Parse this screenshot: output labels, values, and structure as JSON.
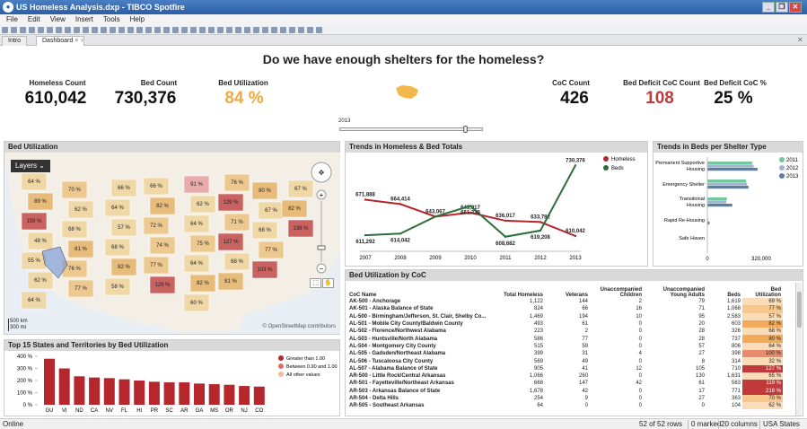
{
  "window": {
    "title": "US Homeless Analysis.dxp - TIBCO Spotfire"
  },
  "menu": [
    "File",
    "Edit",
    "View",
    "Insert",
    "Tools",
    "Help"
  ],
  "tabs": [
    "Intro",
    "Dashboard"
  ],
  "header": {
    "title": "Do we have enough shelters for the homeless?",
    "kpis": [
      {
        "label": "Homeless Count",
        "value": "610,042",
        "color": "#111111"
      },
      {
        "label": "Bed Count",
        "value": "730,376",
        "color": "#111111"
      },
      {
        "label": "Bed Utilization",
        "value": "84 %",
        "color": "#f2a93b"
      },
      {
        "label": "CoC Count",
        "value": "426",
        "color": "#111111"
      },
      {
        "label": "Bed Deficit CoC Count",
        "value": "108",
        "color": "#c0393b"
      },
      {
        "label": "Bed Deficit CoC %",
        "value": "25 %",
        "color": "#111111"
      }
    ],
    "slider_year": "2013",
    "slider_position": 0.87
  },
  "map": {
    "title": "Bed Utilization",
    "layers_label": "Layers",
    "scale_label": "500 km\n300 mi",
    "attribution": "© OpenStreetMap contributors",
    "states": [
      "64 %",
      "89 %",
      "159 %",
      "48 %",
      "55 %",
      "62 %",
      "64 %",
      "70 %",
      "62 %",
      "68 %",
      "81 %",
      "76 %",
      "77 %",
      "66 %",
      "64 %",
      "57 %",
      "68 %",
      "82 %",
      "58 %",
      "66 %",
      "82 %",
      "72 %",
      "74 %",
      "77 %",
      "129 %",
      "91 %",
      "62 %",
      "64 %",
      "75 %",
      "64 %",
      "82 %",
      "60 %",
      "76 %",
      "129 %",
      "71 %",
      "127 %",
      "68 %",
      "81 %",
      "80 %",
      "67 %",
      "68 %",
      "77 %",
      "103 %",
      "67 %",
      "82 %",
      "138 %"
    ]
  },
  "trends": {
    "title": "Trends in Homeless & Bed Totals",
    "legend": [
      "Homeless",
      "Beds"
    ],
    "colors": [
      "#b5262d",
      "#2e6e3e"
    ]
  },
  "shelter": {
    "title": "Trends in Beds per Shelter Type",
    "years": [
      "2011",
      "2012",
      "2013"
    ],
    "colors": [
      "#74c69d",
      "#9fb7cc",
      "#5a7fa0"
    ],
    "axis": [
      "0",
      "320,000"
    ],
    "categories": [
      "Permanent Supportive Housing",
      "Emergency Shelter",
      "Transitional Housing",
      "Rapid Re-Housing",
      "Safe Haven"
    ]
  },
  "bottom_chart": {
    "title": "Top 15 States and Territories by Bed Utilization",
    "legend": [
      "Greater than 1.00",
      "Between 0.90 and 1.00",
      "All other values"
    ],
    "legend_colors": [
      "#b5262d",
      "#e26b6b",
      "#f2b8a0"
    ]
  },
  "coc_table": {
    "title": "Bed Utilization by CoC",
    "columns": [
      "CoC Name",
      "Total Homeless",
      "Veterans",
      "Unaccompanied Children",
      "Unaccompanied Young Adults",
      "Beds",
      "Bed Utilization"
    ],
    "rows": [
      [
        "AK-500 - Anchorage",
        "1,122",
        "144",
        "2",
        "79",
        "1,619",
        "69 %"
      ],
      [
        "AK-501 - Alaska Balance of State",
        "824",
        "66",
        "16",
        "71",
        "1,068",
        "77 %"
      ],
      [
        "AL-500 - Birmingham/Jefferson, St. Clair, Shelby Co...",
        "1,469",
        "194",
        "10",
        "95",
        "2,583",
        "57 %"
      ],
      [
        "AL-501 - Mobile City County/Baldwin County",
        "493",
        "61",
        "0",
        "20",
        "603",
        "82 %"
      ],
      [
        "AL-502 - Florence/Northwest Alabama",
        "223",
        "2",
        "0",
        "28",
        "326",
        "68 %"
      ],
      [
        "AL-503 - Huntsville/North Alabama",
        "586",
        "77",
        "0",
        "28",
        "737",
        "80 %"
      ],
      [
        "AL-504 - Montgomery City County",
        "515",
        "59",
        "0",
        "57",
        "806",
        "64 %"
      ],
      [
        "AL-505 - Gadsden/Northeast Alabama",
        "399",
        "31",
        "4",
        "27",
        "398",
        "100 %"
      ],
      [
        "AL-506 - Tuscaloosa City County",
        "569",
        "49",
        "0",
        "8",
        "314",
        "32 %"
      ],
      [
        "AL-507 - Alabama Balance of State",
        "905",
        "41",
        "12",
        "105",
        "710",
        "127 %"
      ],
      [
        "AR-500 - Little Rock/Central Arkansas",
        "1,066",
        "260",
        "0",
        "130",
        "1,631",
        "65 %"
      ],
      [
        "AR-501 - Fayetteville/Northeast Arkansas",
        "668",
        "147",
        "42",
        "61",
        "563",
        "119 %"
      ],
      [
        "AR-503 - Arkansas Balance of State",
        "1,678",
        "42",
        "0",
        "17",
        "771",
        "218 %"
      ],
      [
        "AR-504 - Delta Hills",
        "254",
        "9",
        "0",
        "27",
        "363",
        "70 %"
      ],
      [
        "AR-505 - Southeast Arkansas",
        "64",
        "0",
        "0",
        "0",
        "104",
        "62 %"
      ]
    ]
  },
  "chart_data": [
    {
      "type": "line",
      "title": "Trends in Homeless & Bed Totals",
      "x": [
        "2007",
        "2008",
        "2009",
        "2010",
        "2011",
        "2012",
        "2013"
      ],
      "series": [
        {
          "name": "Homeless",
          "values": [
            671888,
            664414,
            643067,
            649917,
            636017,
            633782,
            610042
          ],
          "labels": [
            "671,888",
            "664,414",
            "643,067",
            "649,917",
            "636,017",
            "633,782",
            "610,042"
          ]
        },
        {
          "name": "Beds",
          "values": [
            611292,
            614042,
            643067,
            661230,
            608682,
            619208,
            730376
          ],
          "labels": [
            "611,292",
            "614,042",
            "",
            "661,230",
            "608,682",
            "619,208",
            "730,376"
          ]
        }
      ],
      "ylim": [
        590000,
        740000
      ]
    },
    {
      "type": "bar",
      "title": "Trends in Beds per Shelter Type",
      "categories": [
        "Permanent Supportive Housing",
        "Emergency Shelter",
        "Transitional Housing",
        "Rapid Re-Housing",
        "Safe Haven"
      ],
      "series": [
        {
          "name": "2011",
          "values": [
            266000,
            230000,
            116000,
            0,
            1800
          ]
        },
        {
          "name": "2012",
          "values": [
            275000,
            236000,
            112000,
            6000,
            1900
          ]
        },
        {
          "name": "2013",
          "values": [
            298000,
            244000,
            148000,
            13000,
            2000
          ]
        }
      ],
      "xlim": [
        0,
        320000
      ]
    },
    {
      "type": "bar",
      "title": "Top 15 States and Territories by Bed Utilization",
      "categories": [
        "GU",
        "VI",
        "ND",
        "CA",
        "NV",
        "FL",
        "HI",
        "PR",
        "SC",
        "AR",
        "GA",
        "MS",
        "OR",
        "NJ",
        "CO"
      ],
      "values": [
        3.8,
        3.0,
        2.35,
        2.25,
        2.2,
        2.1,
        2.0,
        1.9,
        1.85,
        1.85,
        1.75,
        1.7,
        1.65,
        1.55,
        1.5
      ],
      "ylim": [
        0,
        4
      ],
      "yticks": [
        "0 %",
        "100 %",
        "200 %",
        "300 %",
        "400 %"
      ]
    }
  ]
}
